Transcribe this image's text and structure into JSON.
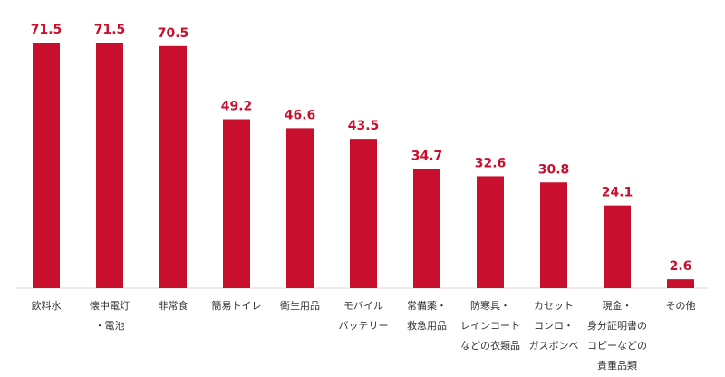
{
  "chart_data": {
    "type": "bar",
    "categories": [
      [
        "飲料水"
      ],
      [
        "懐中電灯",
        "・電池"
      ],
      [
        "非常食"
      ],
      [
        "簡易トイレ"
      ],
      [
        "衛生用品"
      ],
      [
        "モバイル",
        "バッテリー"
      ],
      [
        "常備薬・",
        "救急用品"
      ],
      [
        "防寒具・",
        "レインコート",
        "などの衣類品"
      ],
      [
        "カセット",
        "コンロ・",
        "ガスボンベ"
      ],
      [
        "現金・",
        "身分証明書の",
        "コピーなどの",
        "貴重品類"
      ],
      [
        "その他"
      ]
    ],
    "values": [
      71.5,
      71.5,
      70.5,
      49.2,
      46.6,
      43.5,
      34.7,
      32.6,
      30.8,
      24.1,
      2.6
    ],
    "value_labels": [
      "71.5",
      "71.5",
      "70.5",
      "49.2",
      "46.6",
      "43.5",
      "34.7",
      "32.6",
      "30.8",
      "24.1",
      "2.6"
    ],
    "title": "",
    "xlabel": "",
    "ylabel": "",
    "ylim": [
      0,
      75
    ],
    "grid": false,
    "legend": "none",
    "bar_color": "#c8102e",
    "label_color": "#c8102e",
    "baseline_color": "#d9d9d9"
  }
}
